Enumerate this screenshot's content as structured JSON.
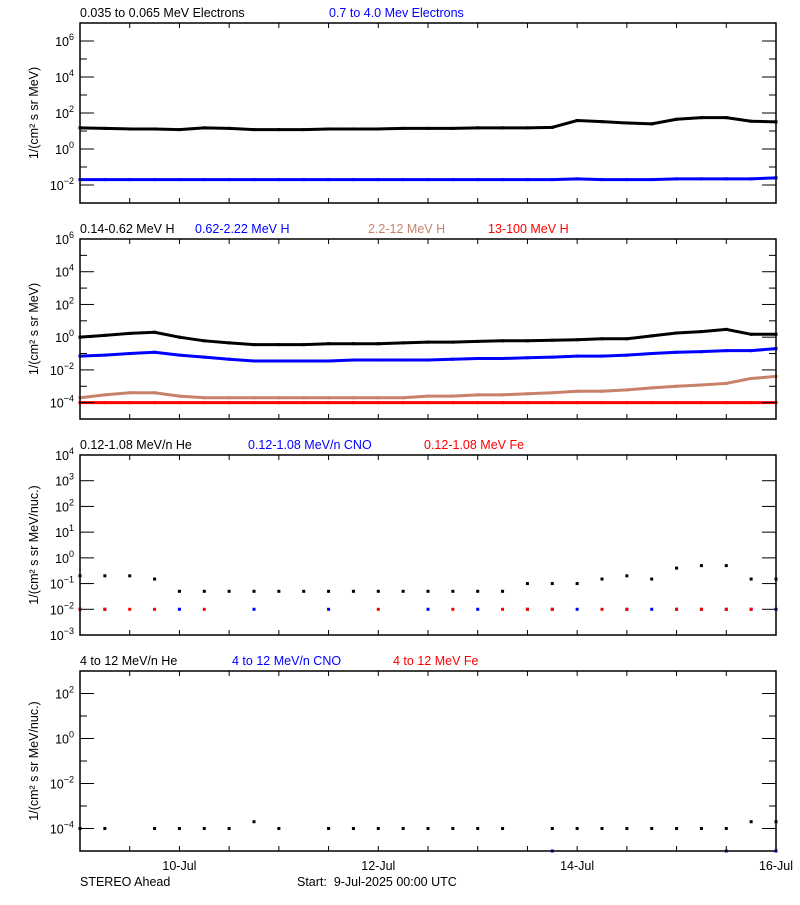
{
  "chart_data": [
    {
      "type": "scatter",
      "ylabel": "1/(cm² s sr MeV)",
      "yscale": "log",
      "ylim": [
        0.001,
        10000000
      ],
      "ytick_exponents": [
        -2,
        0,
        2,
        4,
        6
      ],
      "series": [
        {
          "name": "0.035 to 0.065 MeV Electrons",
          "color": "#000000",
          "values": [
            15,
            14,
            13,
            13,
            12,
            15,
            14,
            12,
            12,
            12,
            13,
            13,
            13,
            14,
            14,
            14,
            15,
            15,
            15,
            16,
            38,
            33,
            28,
            25,
            45,
            55,
            55,
            35,
            32
          ]
        },
        {
          "name": "0.7 to 4.0 Mev Electrons",
          "color": "#0000ff",
          "values": [
            0.02,
            0.02,
            0.02,
            0.02,
            0.02,
            0.02,
            0.02,
            0.02,
            0.02,
            0.02,
            0.02,
            0.02,
            0.02,
            0.02,
            0.02,
            0.02,
            0.02,
            0.02,
            0.02,
            0.02,
            0.022,
            0.02,
            0.02,
            0.02,
            0.022,
            0.022,
            0.022,
            0.022,
            0.025
          ]
        }
      ]
    },
    {
      "type": "scatter",
      "ylabel": "1/(cm² s sr MeV)",
      "yscale": "log",
      "ylim": [
        1e-05,
        1000000
      ],
      "ytick_exponents": [
        -4,
        -2,
        0,
        2,
        4,
        6
      ],
      "series": [
        {
          "name": "0.14-0.62 MeV H",
          "color": "#000000",
          "values": [
            1.0,
            1.3,
            1.7,
            2.0,
            1.0,
            0.6,
            0.45,
            0.35,
            0.35,
            0.35,
            0.4,
            0.4,
            0.4,
            0.45,
            0.5,
            0.5,
            0.55,
            0.6,
            0.6,
            0.65,
            0.7,
            0.8,
            0.8,
            1.2,
            1.8,
            2.2,
            3.0,
            1.5,
            1.5
          ]
        },
        {
          "name": "0.62-2.22 MeV H",
          "color": "#0000ff",
          "values": [
            0.07,
            0.08,
            0.1,
            0.12,
            0.08,
            0.06,
            0.045,
            0.035,
            0.035,
            0.035,
            0.035,
            0.04,
            0.04,
            0.04,
            0.04,
            0.045,
            0.05,
            0.05,
            0.055,
            0.06,
            0.07,
            0.07,
            0.08,
            0.1,
            0.12,
            0.13,
            0.15,
            0.15,
            0.2
          ]
        },
        {
          "name": "2.2-12 MeV H",
          "color": "#c8826a",
          "values": [
            0.0002,
            0.0003,
            0.0004,
            0.0004,
            0.00025,
            0.0002,
            0.0002,
            0.0002,
            0.0002,
            0.0002,
            0.0002,
            0.0002,
            0.0002,
            0.0002,
            0.00025,
            0.00025,
            0.0003,
            0.0003,
            0.00035,
            0.0004,
            0.0005,
            0.0005,
            0.0006,
            0.0008,
            0.001,
            0.0012,
            0.0015,
            0.003,
            0.004
          ]
        },
        {
          "name": "13-100 MeV H",
          "color": "#ff0000",
          "values": [
            0.0001,
            0.0001,
            0.0001,
            0.0001,
            0.0001,
            0.0001,
            0.0001,
            0.0001,
            0.0001,
            0.0001,
            0.0001,
            0.0001,
            0.0001,
            0.0001,
            0.0001,
            0.0001,
            0.0001,
            0.0001,
            0.0001,
            0.0001,
            0.0001,
            0.0001,
            0.0001,
            0.0001,
            0.0001,
            0.0001,
            0.0001,
            0.0001,
            0.0001
          ]
        }
      ]
    },
    {
      "type": "scatter",
      "ylabel": "1/(cm² s sr MeV/nuc.)",
      "yscale": "log",
      "ylim": [
        0.001,
        10000
      ],
      "ytick_exponents": [
        -3,
        -2,
        -1,
        0,
        1,
        2,
        3,
        4
      ],
      "series": [
        {
          "name": "0.12-1.08 MeV/n He",
          "color": "#000000",
          "values": [
            0.2,
            0.2,
            0.2,
            0.15,
            0.05,
            0.05,
            0.05,
            0.05,
            0.05,
            0.05,
            0.05,
            0.05,
            0.05,
            0.05,
            0.05,
            0.05,
            0.05,
            0.05,
            0.1,
            0.1,
            0.1,
            0.15,
            0.2,
            0.15,
            0.4,
            0.5,
            0.5,
            0.15,
            0.15
          ]
        },
        {
          "name": "0.12-1.08 MeV/n CNO",
          "color": "#0000ff",
          "values": [
            0.01,
            0.01,
            null,
            null,
            0.01,
            null,
            null,
            0.01,
            null,
            null,
            0.01,
            null,
            null,
            null,
            0.01,
            null,
            0.01,
            null,
            0.01,
            0.01,
            0.01,
            null,
            0.01,
            0.01,
            0.01,
            0.01,
            0.01,
            0.01,
            0.01
          ]
        },
        {
          "name": "0.12-1.08 MeV Fe",
          "color": "#ff0000",
          "values": [
            0.01,
            0.01,
            0.01,
            0.01,
            null,
            0.01,
            null,
            null,
            null,
            null,
            null,
            null,
            0.01,
            null,
            null,
            0.01,
            null,
            0.01,
            0.01,
            0.01,
            null,
            0.01,
            0.01,
            null,
            0.01,
            0.01,
            0.01,
            0.01,
            null
          ]
        }
      ]
    },
    {
      "type": "scatter",
      "ylabel": "1/(cm² s sr MeV/nuc.)",
      "yscale": "log",
      "ylim": [
        1e-05,
        1000
      ],
      "ytick_exponents": [
        -4,
        -2,
        0,
        2
      ],
      "series": [
        {
          "name": "4 to 12 MeV/n He",
          "color": "#000000",
          "values": [
            0.0001,
            0.0001,
            null,
            0.0001,
            0.0001,
            0.0001,
            0.0001,
            0.0002,
            0.0001,
            null,
            0.0001,
            0.0001,
            0.0001,
            0.0001,
            0.0001,
            0.0001,
            0.0001,
            0.0001,
            null,
            0.0001,
            0.0001,
            0.0001,
            0.0001,
            0.0001,
            0.0001,
            0.0001,
            0.0001,
            0.0002,
            0.0002
          ]
        },
        {
          "name": "4 to 12 MeV/n CNO",
          "color": "#0000ff",
          "values": [
            null,
            null,
            null,
            null,
            null,
            null,
            null,
            null,
            null,
            null,
            null,
            null,
            null,
            null,
            null,
            null,
            null,
            null,
            null,
            1e-05,
            null,
            null,
            null,
            null,
            null,
            null,
            1e-05,
            null,
            1e-05
          ]
        },
        {
          "name": "4 to 12 MeV Fe",
          "color": "#ff0000",
          "values": [
            null,
            null,
            null,
            null,
            null,
            null,
            null,
            null,
            null,
            null,
            null,
            null,
            null,
            null,
            null,
            null,
            null,
            null,
            null,
            null,
            null,
            null,
            null,
            null,
            null,
            null,
            null,
            null,
            null
          ]
        }
      ]
    }
  ],
  "x": [
    "2025-07-09T00:00",
    "2025-07-09T06:00",
    "2025-07-09T12:00",
    "2025-07-09T18:00",
    "2025-07-10T00:00",
    "2025-07-10T06:00",
    "2025-07-10T12:00",
    "2025-07-10T18:00",
    "2025-07-11T00:00",
    "2025-07-11T06:00",
    "2025-07-11T12:00",
    "2025-07-11T18:00",
    "2025-07-12T00:00",
    "2025-07-12T06:00",
    "2025-07-12T12:00",
    "2025-07-12T18:00",
    "2025-07-13T00:00",
    "2025-07-13T06:00",
    "2025-07-13T12:00",
    "2025-07-13T18:00",
    "2025-07-14T00:00",
    "2025-07-14T06:00",
    "2025-07-14T12:00",
    "2025-07-14T18:00",
    "2025-07-15T00:00",
    "2025-07-15T06:00",
    "2025-07-15T12:00",
    "2025-07-15T18:00",
    "2025-07-16T00:00"
  ],
  "xlim": [
    "2025-07-09T00:00",
    "2025-07-16T00:00"
  ],
  "xtick_labels": [
    {
      "date": "2025-07-10T00:00",
      "label": "10-Jul"
    },
    {
      "date": "2025-07-12T00:00",
      "label": "12-Jul"
    },
    {
      "date": "2025-07-14T00:00",
      "label": "14-Jul"
    },
    {
      "date": "2025-07-16T00:00",
      "label": "16-Jul"
    }
  ],
  "footer": {
    "spacecraft": "STEREO Ahead",
    "start": "Start:  9-Jul-2025 00:00 UTC"
  }
}
